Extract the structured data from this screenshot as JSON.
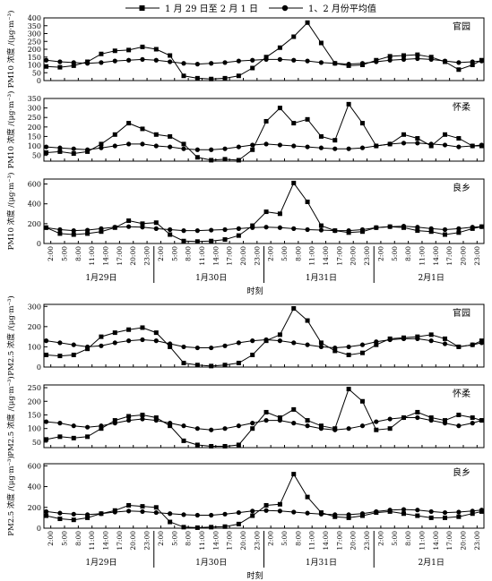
{
  "figure": {
    "legend": {
      "series_a": "1 月 29 日至 2 月 1 日",
      "series_b": "1、2 月份平均值"
    },
    "xlabel": "时刻",
    "x_ticks": [
      "2:00",
      "5:00",
      "8:00",
      "11:00",
      "14:00",
      "17:00",
      "20:00",
      "23:00",
      "2:00",
      "5:00",
      "8:00",
      "11:00",
      "14:00",
      "17:00",
      "20:00",
      "23:00",
      "2:00",
      "5:00",
      "8:00",
      "11:00",
      "14:00",
      "17:00",
      "20:00",
      "23:00",
      "2:00",
      "5:00",
      "8:00",
      "11:00",
      "14:00",
      "17:00",
      "20:00",
      "23:00"
    ],
    "day_labels": [
      "1月29日",
      "1月30日",
      "1月31日",
      "2月1日"
    ]
  },
  "chart_data": [
    {
      "type": "line",
      "group": "PM10",
      "station": "官园",
      "ylabel": "PM10 浓度 /(μg·m⁻³)",
      "yticks": [
        0,
        50,
        100,
        150,
        200,
        250,
        300,
        350,
        400
      ],
      "ylim": [
        0,
        400
      ],
      "x_unit": "hour index from 1月29日 1:00",
      "series": [
        {
          "name": "1 月 29 日至 2 月 1 日",
          "x": [
            0,
            3,
            6,
            9,
            12,
            15,
            18,
            21,
            24,
            27,
            30,
            33,
            36,
            39,
            42,
            45,
            48,
            51,
            54,
            57,
            60,
            63,
            66,
            69,
            72,
            75,
            78,
            81,
            84,
            87,
            90,
            93,
            95
          ],
          "values": [
            90,
            85,
            95,
            120,
            170,
            190,
            195,
            215,
            200,
            160,
            30,
            15,
            10,
            15,
            30,
            80,
            150,
            210,
            280,
            370,
            240,
            110,
            95,
            100,
            130,
            155,
            160,
            165,
            150,
            120,
            70,
            100,
            130
          ]
        },
        {
          "name": "1、2 月份平均值",
          "x": [
            0,
            3,
            6,
            9,
            12,
            15,
            18,
            21,
            24,
            27,
            30,
            33,
            36,
            39,
            42,
            45,
            48,
            51,
            54,
            57,
            60,
            63,
            66,
            69,
            72,
            75,
            78,
            81,
            84,
            87,
            90,
            93,
            95
          ],
          "values": [
            130,
            120,
            115,
            110,
            115,
            125,
            130,
            135,
            130,
            120,
            110,
            105,
            110,
            115,
            125,
            130,
            135,
            135,
            130,
            125,
            115,
            110,
            105,
            110,
            120,
            130,
            135,
            140,
            135,
            125,
            115,
            120,
            125
          ]
        }
      ]
    },
    {
      "type": "line",
      "group": "PM10",
      "station": "怀柔",
      "ylabel": "PM10 浓度 /(μg·m⁻³)",
      "yticks": [
        50,
        100,
        150,
        200,
        250,
        300,
        350
      ],
      "ylim": [
        20,
        350
      ],
      "x_unit": "hour index from 1月29日 1:00",
      "series": [
        {
          "name": "1 月 29 日至 2 月 1 日",
          "x": [
            0,
            3,
            6,
            9,
            12,
            15,
            18,
            21,
            24,
            27,
            30,
            33,
            36,
            39,
            42,
            45,
            48,
            51,
            54,
            57,
            60,
            63,
            66,
            69,
            72,
            75,
            78,
            81,
            84,
            87,
            90,
            93,
            95
          ],
          "values": [
            65,
            70,
            60,
            70,
            110,
            160,
            220,
            190,
            160,
            150,
            110,
            40,
            25,
            30,
            25,
            80,
            230,
            300,
            220,
            240,
            150,
            130,
            320,
            220,
            100,
            110,
            160,
            140,
            100,
            160,
            140,
            100,
            100
          ]
        },
        {
          "name": "1、2 月份平均值",
          "x": [
            0,
            3,
            6,
            9,
            12,
            15,
            18,
            21,
            24,
            27,
            30,
            33,
            36,
            39,
            42,
            45,
            48,
            51,
            54,
            57,
            60,
            63,
            66,
            69,
            72,
            75,
            78,
            81,
            84,
            87,
            90,
            93,
            95
          ],
          "values": [
            95,
            90,
            85,
            80,
            90,
            100,
            110,
            110,
            100,
            95,
            85,
            80,
            80,
            85,
            95,
            105,
            110,
            105,
            100,
            95,
            90,
            85,
            85,
            90,
            100,
            110,
            115,
            115,
            110,
            105,
            95,
            100,
            105
          ]
        }
      ]
    },
    {
      "type": "line",
      "group": "PM10",
      "station": "良乡",
      "ylabel": "PM10 浓度 /(μg·m⁻³)",
      "yticks": [
        0,
        200,
        400,
        600
      ],
      "ylim": [
        0,
        650
      ],
      "x_unit": "hour index from 1月29日 1:00",
      "series": [
        {
          "name": "1 月 29 日至 2 月 1 日",
          "x": [
            0,
            3,
            6,
            9,
            12,
            15,
            18,
            21,
            24,
            27,
            30,
            33,
            36,
            39,
            42,
            45,
            48,
            51,
            54,
            57,
            60,
            63,
            66,
            69,
            72,
            75,
            78,
            81,
            84,
            87,
            90,
            93,
            95
          ],
          "values": [
            160,
            100,
            90,
            100,
            120,
            160,
            230,
            200,
            210,
            90,
            25,
            20,
            25,
            40,
            80,
            180,
            320,
            300,
            610,
            420,
            180,
            130,
            110,
            120,
            160,
            170,
            160,
            130,
            120,
            90,
            110,
            150,
            170
          ]
        },
        {
          "name": "1、2 月份平均值",
          "x": [
            0,
            3,
            6,
            9,
            12,
            15,
            18,
            21,
            24,
            27,
            30,
            33,
            36,
            39,
            42,
            45,
            48,
            51,
            54,
            57,
            60,
            63,
            66,
            69,
            72,
            75,
            78,
            81,
            84,
            87,
            90,
            93,
            95
          ],
          "values": [
            160,
            140,
            130,
            135,
            150,
            165,
            170,
            165,
            150,
            140,
            130,
            130,
            135,
            140,
            150,
            160,
            165,
            160,
            150,
            140,
            135,
            130,
            130,
            140,
            160,
            170,
            175,
            165,
            150,
            140,
            150,
            165,
            170
          ]
        }
      ]
    },
    {
      "type": "line",
      "group": "PM2.5",
      "station": "官园",
      "ylabel": "PM2.5 浓度 /(μg·m⁻³)",
      "yticks": [
        0,
        100,
        200,
        300
      ],
      "ylim": [
        0,
        310
      ],
      "x_unit": "hour index from 1月29日 1:00",
      "series": [
        {
          "name": "1 月 29 日至 2 月 1 日",
          "x": [
            0,
            3,
            6,
            9,
            12,
            15,
            18,
            21,
            24,
            27,
            30,
            33,
            36,
            39,
            42,
            45,
            48,
            51,
            54,
            57,
            60,
            63,
            66,
            69,
            72,
            75,
            78,
            81,
            84,
            87,
            90,
            93,
            95
          ],
          "values": [
            60,
            55,
            60,
            90,
            150,
            170,
            185,
            195,
            170,
            100,
            20,
            10,
            5,
            10,
            20,
            60,
            130,
            160,
            290,
            230,
            120,
            80,
            60,
            70,
            110,
            140,
            145,
            150,
            160,
            140,
            100,
            110,
            130
          ]
        },
        {
          "name": "1、2 月份平均值",
          "x": [
            0,
            3,
            6,
            9,
            12,
            15,
            18,
            21,
            24,
            27,
            30,
            33,
            36,
            39,
            42,
            45,
            48,
            51,
            54,
            57,
            60,
            63,
            66,
            69,
            72,
            75,
            78,
            81,
            84,
            87,
            90,
            93,
            95
          ],
          "values": [
            130,
            120,
            110,
            100,
            105,
            120,
            130,
            135,
            130,
            115,
            100,
            95,
            95,
            105,
            120,
            130,
            135,
            130,
            120,
            110,
            100,
            95,
            100,
            110,
            125,
            135,
            140,
            140,
            130,
            115,
            100,
            110,
            120
          ]
        }
      ]
    },
    {
      "type": "line",
      "group": "PM2.5",
      "station": "怀柔",
      "ylabel": "PM2.5 浓度 /(μg·m⁻³)",
      "yticks": [
        50,
        100,
        150,
        200,
        250
      ],
      "ylim": [
        30,
        260
      ],
      "x_unit": "hour index from 1月29日 1:00",
      "series": [
        {
          "name": "1 月 29 日至 2 月 1 日",
          "x": [
            0,
            3,
            6,
            9,
            12,
            15,
            18,
            21,
            24,
            27,
            30,
            33,
            36,
            39,
            42,
            45,
            48,
            51,
            54,
            57,
            60,
            63,
            66,
            69,
            72,
            75,
            78,
            81,
            84,
            87,
            90,
            93,
            95
          ],
          "values": [
            60,
            70,
            65,
            70,
            100,
            130,
            145,
            150,
            140,
            110,
            55,
            40,
            35,
            35,
            40,
            100,
            160,
            140,
            170,
            130,
            110,
            100,
            245,
            200,
            95,
            100,
            140,
            160,
            140,
            130,
            150,
            140,
            130
          ]
        },
        {
          "name": "1、2 月份平均值",
          "x": [
            0,
            3,
            6,
            9,
            12,
            15,
            18,
            21,
            24,
            27,
            30,
            33,
            36,
            39,
            42,
            45,
            48,
            51,
            54,
            57,
            60,
            63,
            66,
            69,
            72,
            75,
            78,
            81,
            84,
            87,
            90,
            93,
            95
          ],
          "values": [
            125,
            120,
            110,
            105,
            110,
            120,
            130,
            135,
            130,
            120,
            110,
            100,
            95,
            100,
            110,
            120,
            130,
            130,
            120,
            110,
            100,
            95,
            100,
            110,
            125,
            135,
            140,
            140,
            130,
            120,
            110,
            120,
            130
          ]
        }
      ]
    },
    {
      "type": "line",
      "group": "PM2.5",
      "station": "良乡",
      "ylabel": "PM2.5 浓度 /(μg·m⁻³)",
      "yticks": [
        0,
        200,
        400,
        600
      ],
      "ylim": [
        0,
        620
      ],
      "x_unit": "hour index from 1月29日 1:00",
      "series": [
        {
          "name": "1 月 29 日至 2 月 1 日",
          "x": [
            0,
            3,
            6,
            9,
            12,
            15,
            18,
            21,
            24,
            27,
            30,
            33,
            36,
            39,
            42,
            45,
            48,
            51,
            54,
            57,
            60,
            63,
            66,
            69,
            72,
            75,
            78,
            81,
            84,
            87,
            90,
            93,
            95
          ],
          "values": [
            120,
            90,
            80,
            100,
            140,
            170,
            220,
            210,
            200,
            60,
            10,
            5,
            10,
            15,
            40,
            120,
            220,
            230,
            520,
            300,
            150,
            110,
            100,
            120,
            150,
            160,
            140,
            120,
            100,
            100,
            110,
            140,
            160
          ]
        },
        {
          "name": "1、2 月份平均值",
          "x": [
            0,
            3,
            6,
            9,
            12,
            15,
            18,
            21,
            24,
            27,
            30,
            33,
            36,
            39,
            42,
            45,
            48,
            51,
            54,
            57,
            60,
            63,
            66,
            69,
            72,
            75,
            78,
            81,
            84,
            87,
            90,
            93,
            95
          ],
          "values": [
            160,
            145,
            135,
            130,
            140,
            155,
            165,
            160,
            150,
            140,
            130,
            125,
            125,
            135,
            150,
            165,
            170,
            165,
            155,
            145,
            135,
            130,
            130,
            140,
            160,
            175,
            180,
            175,
            160,
            150,
            155,
            165,
            175
          ]
        }
      ]
    }
  ]
}
